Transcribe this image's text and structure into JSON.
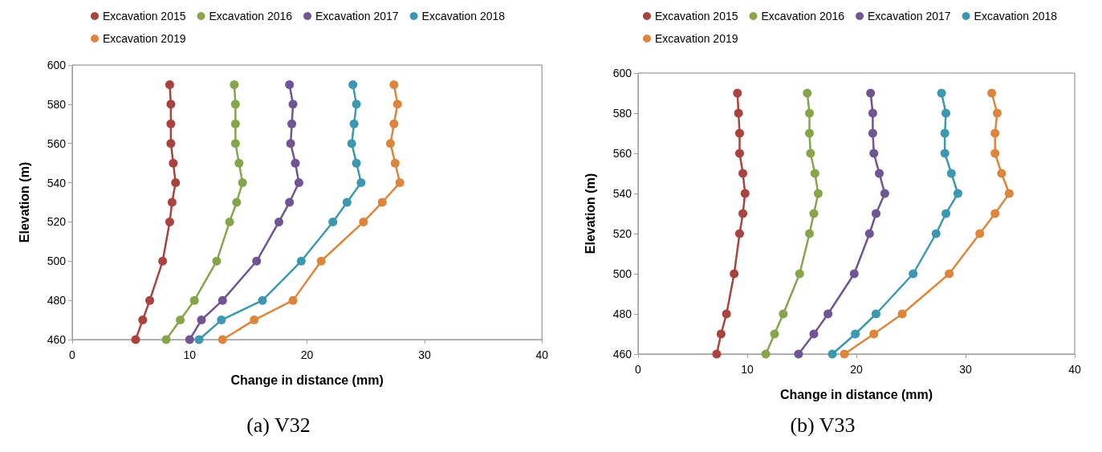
{
  "chart_data": [
    {
      "type": "line",
      "title": "(a) V32",
      "xlabel": "Change in distance (mm)",
      "ylabel": "Elevation (m)",
      "xlim": [
        0,
        40
      ],
      "xticks": [
        0,
        10,
        20,
        30,
        40
      ],
      "ylim": [
        460,
        600
      ],
      "yticks": [
        460,
        480,
        500,
        520,
        540,
        560,
        580,
        600
      ],
      "grid": false,
      "legend": "top",
      "marker": "circle",
      "line_style": "solid",
      "series": [
        {
          "name": "Excavation 2015",
          "color": "#a9433f",
          "x": [
            5.4,
            6.0,
            6.6,
            7.7,
            8.3,
            8.5,
            8.8,
            8.6,
            8.4,
            8.4,
            8.4,
            8.3
          ],
          "values": [
            460,
            470,
            480,
            500,
            520,
            530,
            540,
            550,
            560,
            570,
            580,
            590
          ]
        },
        {
          "name": "Excavation 2016",
          "color": "#86a54b",
          "x": [
            8.0,
            9.2,
            10.4,
            12.3,
            13.4,
            14.0,
            14.5,
            14.2,
            13.9,
            13.9,
            13.9,
            13.8
          ],
          "values": [
            460,
            470,
            480,
            500,
            520,
            530,
            540,
            550,
            560,
            570,
            580,
            590
          ]
        },
        {
          "name": "Excavation 2017",
          "color": "#6f5594",
          "x": [
            10.0,
            11.0,
            12.8,
            15.7,
            17.6,
            18.5,
            19.3,
            19.0,
            18.6,
            18.7,
            18.8,
            18.5
          ],
          "values": [
            460,
            470,
            480,
            500,
            520,
            530,
            540,
            550,
            560,
            570,
            580,
            590
          ]
        },
        {
          "name": "Excavation 2018",
          "color": "#3d97b0",
          "x": [
            10.8,
            12.7,
            16.2,
            19.5,
            22.2,
            23.4,
            24.6,
            24.2,
            23.8,
            24.0,
            24.2,
            23.9
          ],
          "values": [
            460,
            470,
            480,
            500,
            520,
            530,
            540,
            550,
            560,
            570,
            580,
            590
          ]
        },
        {
          "name": "Excavation 2019",
          "color": "#dd843d",
          "x": [
            12.8,
            15.5,
            18.8,
            21.2,
            24.8,
            26.4,
            27.9,
            27.5,
            27.1,
            27.4,
            27.7,
            27.4
          ],
          "values": [
            460,
            470,
            480,
            500,
            520,
            530,
            540,
            550,
            560,
            570,
            580,
            590
          ]
        }
      ]
    },
    {
      "type": "line",
      "title": "(b) V33",
      "xlabel": "Change in distance (mm)",
      "ylabel": "Elevation (m)",
      "xlim": [
        0,
        40
      ],
      "xticks": [
        0,
        10,
        20,
        30,
        40
      ],
      "ylim": [
        460,
        600
      ],
      "yticks": [
        460,
        480,
        500,
        520,
        540,
        560,
        580,
        600
      ],
      "grid": false,
      "legend": "top",
      "marker": "circle",
      "line_style": "solid",
      "series": [
        {
          "name": "Excavation 2015",
          "color": "#a9433f",
          "x": [
            7.2,
            7.6,
            8.1,
            8.8,
            9.3,
            9.6,
            9.8,
            9.6,
            9.3,
            9.3,
            9.2,
            9.1
          ],
          "values": [
            460,
            470,
            480,
            500,
            520,
            530,
            540,
            550,
            560,
            570,
            580,
            590
          ]
        },
        {
          "name": "Excavation 2016",
          "color": "#86a54b",
          "x": [
            11.7,
            12.5,
            13.3,
            14.8,
            15.7,
            16.1,
            16.5,
            16.2,
            15.8,
            15.7,
            15.7,
            15.5
          ],
          "values": [
            460,
            470,
            480,
            500,
            520,
            530,
            540,
            550,
            560,
            570,
            580,
            590
          ]
        },
        {
          "name": "Excavation 2017",
          "color": "#6f5594",
          "x": [
            14.7,
            16.1,
            17.4,
            19.8,
            21.2,
            21.8,
            22.6,
            22.1,
            21.6,
            21.5,
            21.5,
            21.3
          ],
          "values": [
            460,
            470,
            480,
            500,
            520,
            530,
            540,
            550,
            560,
            570,
            580,
            590
          ]
        },
        {
          "name": "Excavation 2018",
          "color": "#3d97b0",
          "x": [
            17.8,
            19.9,
            21.8,
            25.2,
            27.3,
            28.2,
            29.3,
            28.7,
            28.1,
            28.1,
            28.2,
            27.8
          ],
          "values": [
            460,
            470,
            480,
            500,
            520,
            530,
            540,
            550,
            560,
            570,
            580,
            590
          ]
        },
        {
          "name": "Excavation 2019",
          "color": "#dd843d",
          "x": [
            18.9,
            21.6,
            24.2,
            28.5,
            31.3,
            32.7,
            34.0,
            33.3,
            32.7,
            32.7,
            32.9,
            32.4
          ],
          "values": [
            460,
            470,
            480,
            500,
            520,
            530,
            540,
            550,
            560,
            570,
            580,
            590
          ]
        }
      ]
    }
  ]
}
